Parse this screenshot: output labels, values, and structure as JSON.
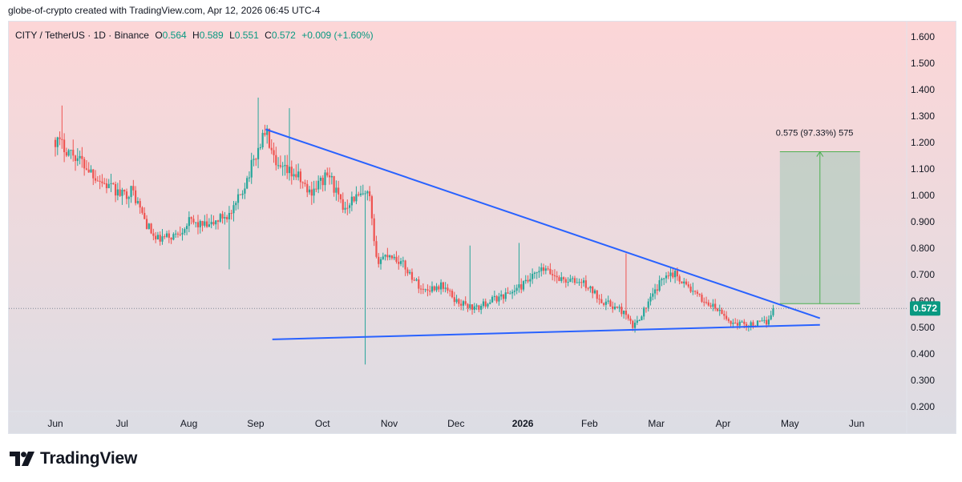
{
  "header": {
    "caption": "globe-of-crypto created with TradingView.com, Apr 12, 2026 06:45 UTC-4"
  },
  "legend": {
    "symbol": "CITY / TetherUS · 1D · Binance",
    "open_label": "O",
    "open": "0.564",
    "high_label": "H",
    "high": "0.589",
    "low_label": "L",
    "low": "0.551",
    "close_label": "C",
    "close": "0.572",
    "change": "+0.009 (+1.60%)"
  },
  "price_scale": {
    "ticks": [
      "1.600",
      "1.500",
      "1.400",
      "1.300",
      "1.200",
      "1.100",
      "1.000",
      "0.900",
      "0.800",
      "0.700",
      "0.600",
      "0.500",
      "0.400",
      "0.300",
      "0.200"
    ],
    "last_price_label": "0.572"
  },
  "time_axis": {
    "labels": [
      "Jun",
      "Jul",
      "Aug",
      "Sep",
      "Oct",
      "Nov",
      "Dec",
      "2026",
      "Feb",
      "Mar",
      "Apr",
      "May",
      "Jun"
    ],
    "bold_label": "2026"
  },
  "annotation": {
    "measure_label": "0.575 (97.33%) 575"
  },
  "footer": {
    "brand": "TradingView"
  },
  "chart_data": {
    "type": "candlestick",
    "symbol": "CITY / TetherUS",
    "interval": "1D",
    "exchange": "Binance",
    "ylim": [
      0.2,
      1.6
    ],
    "grid": false,
    "colors": {
      "up": "#26a69a",
      "down": "#ef5350",
      "trendline": "#2962ff",
      "background_top": "#fcd6d7",
      "background_bottom": "#dcdde4",
      "measure_fill": "#b7ccc1",
      "measure_line": "#4caf50",
      "last_price_badge": "#089981"
    },
    "price_path": [
      {
        "month": 0.0,
        "price": 1.21
      },
      {
        "month": 0.3,
        "price": 1.15
      },
      {
        "month": 0.7,
        "price": 1.05
      },
      {
        "month": 1.0,
        "price": 1.0
      },
      {
        "month": 1.15,
        "price": 1.02
      },
      {
        "month": 1.35,
        "price": 0.9
      },
      {
        "month": 1.5,
        "price": 0.83
      },
      {
        "month": 1.8,
        "price": 0.85
      },
      {
        "month": 2.0,
        "price": 0.9
      },
      {
        "month": 2.3,
        "price": 0.88
      },
      {
        "month": 2.5,
        "price": 0.92
      },
      {
        "month": 2.65,
        "price": 0.93
      },
      {
        "month": 2.8,
        "price": 1.02
      },
      {
        "month": 3.0,
        "price": 1.15
      },
      {
        "month": 3.15,
        "price": 1.25
      },
      {
        "month": 3.3,
        "price": 1.1
      },
      {
        "month": 3.6,
        "price": 1.08
      },
      {
        "month": 3.8,
        "price": 1.01
      },
      {
        "month": 4.1,
        "price": 1.08
      },
      {
        "month": 4.3,
        "price": 0.95
      },
      {
        "month": 4.45,
        "price": 0.99
      },
      {
        "month": 4.7,
        "price": 1.0
      },
      {
        "month": 4.8,
        "price": 0.75
      },
      {
        "month": 5.0,
        "price": 0.78
      },
      {
        "month": 5.2,
        "price": 0.74
      },
      {
        "month": 5.5,
        "price": 0.64
      },
      {
        "month": 5.8,
        "price": 0.66
      },
      {
        "month": 6.0,
        "price": 0.6
      },
      {
        "month": 6.3,
        "price": 0.57
      },
      {
        "month": 6.5,
        "price": 0.6
      },
      {
        "month": 6.8,
        "price": 0.63
      },
      {
        "month": 7.0,
        "price": 0.66
      },
      {
        "month": 7.3,
        "price": 0.72
      },
      {
        "month": 7.6,
        "price": 0.68
      },
      {
        "month": 7.9,
        "price": 0.67
      },
      {
        "month": 8.2,
        "price": 0.6
      },
      {
        "month": 8.5,
        "price": 0.56
      },
      {
        "month": 8.65,
        "price": 0.5
      },
      {
        "month": 8.9,
        "price": 0.6
      },
      {
        "month": 9.15,
        "price": 0.71
      },
      {
        "month": 9.3,
        "price": 0.7
      },
      {
        "month": 9.6,
        "price": 0.62
      },
      {
        "month": 9.9,
        "price": 0.57
      },
      {
        "month": 10.1,
        "price": 0.52
      },
      {
        "month": 10.4,
        "price": 0.51
      },
      {
        "month": 10.65,
        "price": 0.52
      },
      {
        "month": 10.75,
        "price": 0.572
      }
    ],
    "spikes": [
      {
        "month": 0.1,
        "high": 1.34
      },
      {
        "month": 2.6,
        "low": 0.72
      },
      {
        "month": 3.05,
        "high": 1.37
      },
      {
        "month": 3.5,
        "high": 1.33
      },
      {
        "month": 4.65,
        "low": 0.36
      },
      {
        "month": 6.2,
        "high": 0.81
      },
      {
        "month": 6.95,
        "high": 0.82
      },
      {
        "month": 8.55,
        "high": 0.78
      },
      {
        "month": 9.55,
        "high": 0.67
      },
      {
        "month": 10.85,
        "high": 0.62
      }
    ],
    "trendlines": [
      {
        "name": "upper",
        "from": {
          "month": 3.15,
          "price": 1.25
        },
        "to": {
          "month": 11.45,
          "price": 0.535
        }
      },
      {
        "name": "lower",
        "from": {
          "month": 3.25,
          "price": 0.455
        },
        "to": {
          "month": 11.45,
          "price": 0.51
        }
      }
    ],
    "measure": {
      "from_month": 10.85,
      "to_month": 12.05,
      "from_price": 0.59,
      "to_price": 1.165,
      "change": 0.575,
      "percent": 97.33
    },
    "last_price": 0.572
  }
}
